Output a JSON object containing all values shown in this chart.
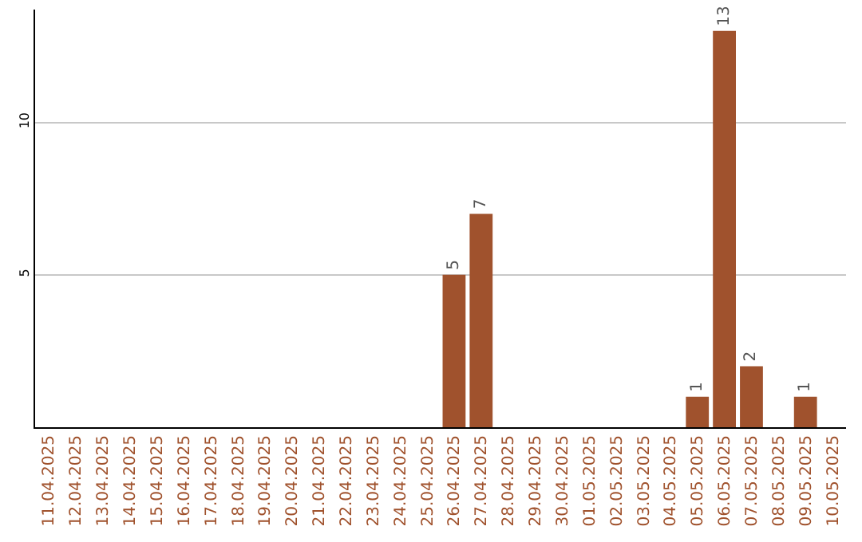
{
  "chart_data": {
    "type": "bar",
    "categories": [
      "11.04.2025",
      "12.04.2025",
      "13.04.2025",
      "14.04.2025",
      "15.04.2025",
      "16.04.2025",
      "17.04.2025",
      "18.04.2025",
      "19.04.2025",
      "20.04.2025",
      "21.04.2025",
      "22.04.2025",
      "23.04.2025",
      "24.04.2025",
      "25.04.2025",
      "26.04.2025",
      "27.04.2025",
      "28.04.2025",
      "29.04.2025",
      "30.04.2025",
      "01.05.2025",
      "02.05.2025",
      "03.05.2025",
      "04.05.2025",
      "05.05.2025",
      "06.05.2025",
      "07.05.2025",
      "08.05.2025",
      "09.05.2025",
      "10.05.2025"
    ],
    "values": [
      0,
      0,
      0,
      0,
      0,
      0,
      0,
      0,
      0,
      0,
      0,
      0,
      0,
      0,
      0,
      5,
      7,
      0,
      0,
      0,
      0,
      0,
      0,
      0,
      1,
      13,
      2,
      0,
      1,
      0
    ],
    "value_labels": [
      null,
      null,
      null,
      null,
      null,
      null,
      null,
      null,
      null,
      null,
      null,
      null,
      null,
      null,
      null,
      "5",
      "7",
      null,
      null,
      null,
      null,
      null,
      null,
      null,
      "1",
      "13",
      "2",
      null,
      "1",
      null
    ],
    "color": "#a0522d",
    "ylim": [
      0,
      13.7
    ],
    "yticks": [
      5,
      10
    ],
    "grid": "y",
    "legend": false
  }
}
